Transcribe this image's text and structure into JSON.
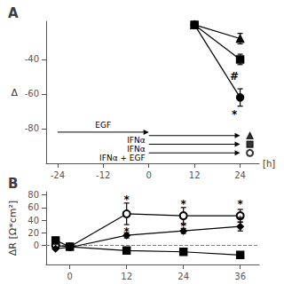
{
  "chart_data": [
    {
      "type": "line",
      "title": "A",
      "xlabel": "[h]",
      "ylabel": "Δ",
      "xlim": [
        -27,
        29
      ],
      "ylim": [
        -100,
        -18
      ],
      "xticks": [
        -24,
        -12,
        0,
        12,
        24
      ],
      "yticks": [
        -40,
        -60,
        -80
      ],
      "grid": false,
      "x": [
        12,
        24
      ],
      "series": [
        {
          "marker": "triangle",
          "color": "black",
          "line_style": "solid",
          "values": [
            -20,
            -28
          ],
          "yerr": [
            0,
            3
          ]
        },
        {
          "marker": "square",
          "color": "black",
          "line_style": "solid",
          "values": [
            -20,
            -40
          ],
          "yerr": [
            0,
            3
          ]
        },
        {
          "marker": "circle",
          "color": "black",
          "line_style": "solid",
          "values": [
            -20,
            -62
          ],
          "yerr": [
            0,
            5
          ]
        }
      ],
      "annotations": [
        {
          "x": 22.5,
          "y": -50,
          "text": "#"
        },
        {
          "x": 22.5,
          "y": -72,
          "text": "*"
        }
      ],
      "arrows": [
        {
          "x0": -24,
          "x1": 0,
          "y": -82,
          "label": "EGF"
        },
        {
          "x0": 0,
          "x1": 24,
          "y": -84,
          "label": "IFNα",
          "marker": "triangle"
        },
        {
          "x0": 0,
          "x1": 24,
          "y": -89,
          "label": "IFNα",
          "marker": "square"
        },
        {
          "x0": 0,
          "x1": 24,
          "y": -94,
          "label": "IFNα + EGF",
          "marker": "open_circle"
        }
      ]
    },
    {
      "type": "line",
      "title": "B",
      "ylabel": "ΔR [Ω*cm²]",
      "xlim": [
        -5,
        40
      ],
      "ylim": [
        -30,
        85
      ],
      "xticks": [
        0,
        12,
        24,
        36
      ],
      "yticks": [
        0,
        20,
        40,
        60,
        80
      ],
      "grid": false,
      "x": [
        -3,
        0,
        12,
        24,
        36
      ],
      "series": [
        {
          "marker": "open_circle",
          "color": "black",
          "line_style": "solid",
          "values": [
            0,
            -2,
            50,
            47,
            47
          ],
          "yerr": [
            1,
            3,
            17,
            13,
            10
          ]
        },
        {
          "marker": "diamond",
          "color": "black",
          "line_style": "solid",
          "values": [
            -5,
            -3,
            16,
            23,
            30
          ],
          "yerr": [
            2,
            2,
            4,
            4,
            7
          ]
        },
        {
          "marker": "square",
          "color": "black",
          "line_style": "solid",
          "values": [
            8,
            -2,
            -8,
            -10,
            -15
          ],
          "yerr": [
            5,
            3,
            4,
            4,
            5
          ]
        }
      ],
      "hline": {
        "y": 0,
        "line_style": "dashed",
        "color": "gray"
      },
      "annotations": [
        {
          "x": 12,
          "y": 72,
          "text": "*"
        },
        {
          "x": 12,
          "y": 22,
          "text": "*"
        },
        {
          "x": 24,
          "y": 65,
          "text": "*"
        },
        {
          "x": 24,
          "y": 30,
          "text": "*"
        },
        {
          "x": 36,
          "y": 65,
          "text": "*"
        },
        {
          "x": 36,
          "y": 40,
          "text": "*"
        }
      ]
    }
  ]
}
